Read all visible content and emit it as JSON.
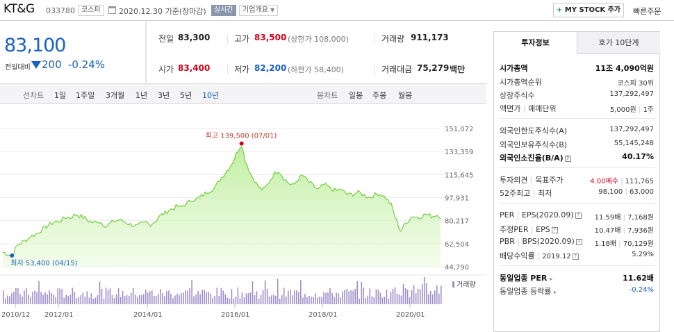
{
  "header": {
    "company_name": "KT&G",
    "stock_code": "033780",
    "market": "코스피",
    "date": "2020.12.30 기준(장마감)",
    "realtime_label": "실시간",
    "overview_label": "기업개요",
    "mystock_label": "MY STOCK 추가",
    "quick_order_label": "빠른주문"
  },
  "price": {
    "current": "83,100",
    "change_label": "전일대비",
    "change_value": "200",
    "change_rate": "-0.24%",
    "change_color": "#1861c4"
  },
  "quote": {
    "prev_label": "전일",
    "prev_value": "83,300",
    "high_label": "고가",
    "high_value": "83,500",
    "upper_limit": "(상한가 108,000)",
    "volume_label": "거래량",
    "volume_value": "911,173",
    "open_label": "시가",
    "open_value": "83,400",
    "low_label": "저가",
    "low_value": "82,200",
    "lower_limit": "(하한가 58,400)",
    "amount_label": "거래대금",
    "amount_value": "75,279",
    "amount_unit": "백만"
  },
  "tabs": {
    "line_chart_label": "선차트",
    "periods": [
      "1일",
      "1주일",
      "3개월",
      "1년",
      "3년",
      "5년",
      "10년"
    ],
    "selected_period": "10년",
    "candle_chart_label": "봉차트",
    "candle_periods": [
      "일봉",
      "주봉",
      "월봉"
    ]
  },
  "chart_data": {
    "type": "area",
    "x_labels": [
      "2010/12",
      "2012/01",
      "2014/01",
      "2016/01",
      "2018/01",
      "2020/01"
    ],
    "y_ticks": [
      151072,
      133359,
      115645,
      97931,
      80217,
      62504,
      44790
    ],
    "ylim": [
      44790,
      151072
    ],
    "high_annotation": "최고 139,500 (07/01)",
    "low_annotation": "최저 53,400 (04/15)",
    "high_value": 139500,
    "low_value": 53400,
    "volume_label": "거래량",
    "line_color": "#6fcf3b",
    "volume_color": "#9e8fc7",
    "series_monthly": [
      56000,
      55000,
      54200,
      53400,
      58000,
      62000,
      63000,
      64500,
      66000,
      68000,
      69000,
      70000,
      72000,
      73500,
      75000,
      77000,
      78000,
      80000,
      79000,
      80500,
      82000,
      83000,
      82500,
      84000,
      85000,
      84000,
      83000,
      82000,
      80000,
      79000,
      78500,
      80000,
      79000,
      77000,
      76000,
      78000,
      79500,
      80000,
      81000,
      80000,
      79000,
      78000,
      77000,
      76500,
      76000,
      77500,
      78000,
      79000,
      77000,
      78500,
      80000,
      83000,
      85000,
      86000,
      88000,
      89000,
      90000,
      91500,
      90000,
      92000,
      93000,
      95000,
      97000,
      96000,
      98000,
      99000,
      101000,
      102500,
      104000,
      105000,
      108000,
      112000,
      115000,
      118000,
      121000,
      125000,
      130000,
      135000,
      139500,
      128000,
      122000,
      116000,
      112000,
      108000,
      105000,
      104000,
      106000,
      110000,
      114000,
      117000,
      119000,
      116000,
      112000,
      110000,
      108000,
      107000,
      111000,
      113000,
      115500,
      112000,
      110000,
      108000,
      106000,
      104000,
      106000,
      108000,
      106500,
      105000,
      104000,
      103000,
      104500,
      103000,
      101500,
      100000,
      100500,
      101000,
      102000,
      101000,
      100000,
      99000,
      98000,
      99500,
      100500,
      101000,
      100000,
      98000,
      95000,
      92000,
      84000,
      78000,
      72000,
      76000,
      79000,
      82000,
      84000,
      83000,
      82500,
      84000,
      85000,
      84500,
      83500,
      84000,
      85000,
      83100
    ]
  },
  "invest_info": {
    "tab_invest": "투자정보",
    "tab_hoga": "호가 10단계",
    "rows": {
      "market_cap_label": "시가총액",
      "market_cap_value": "11조 4,090억원",
      "market_cap_rank_label": "시가총액순위",
      "market_cap_rank_value": "코스피 30위",
      "listed_shares_label": "상장주식수",
      "listed_shares_value": "137,292,497",
      "par_value_label": "액면가",
      "trade_unit_label": "매매단위",
      "par_value_value": "5,000원",
      "trade_unit_value": "1주",
      "foreign_limit_label": "외국인한도주식수(A)",
      "foreign_limit_value": "137,292,497",
      "foreign_hold_label": "외국인보유주식수(B)",
      "foreign_hold_value": "55,145,248",
      "foreign_ratio_label": "외국인소진율(B/A)",
      "foreign_ratio_value": "40.17%",
      "opinion_label": "투자의견",
      "target_label": "목표주가",
      "opinion_value": "4.00매수",
      "target_value": "111,765",
      "w52_high_label": "52주최고",
      "w52_low_label": "최저",
      "w52_high_value": "98,100",
      "w52_low_value": "63,000",
      "per_label": "PER",
      "eps_label": "EPS(2020.09)",
      "per_value": "11.59배",
      "eps_value": "7,168원",
      "est_per_label": "추정PER",
      "est_eps_label": "EPS",
      "est_per_value": "10.47배",
      "est_eps_value": "7,936원",
      "pbr_label": "PBR",
      "bps_label": "BPS(2020.09)",
      "pbr_value": "1.18배",
      "bps_value": "70,129원",
      "dividend_label": "배당수익률",
      "dividend_date": "2019.12",
      "dividend_value": "5.29%",
      "sector_per_label": "동일업종 PER",
      "sector_per_value": "11.62배",
      "sector_change_label": "동일업종 등락률",
      "sector_change_value": "-0.24%"
    }
  }
}
